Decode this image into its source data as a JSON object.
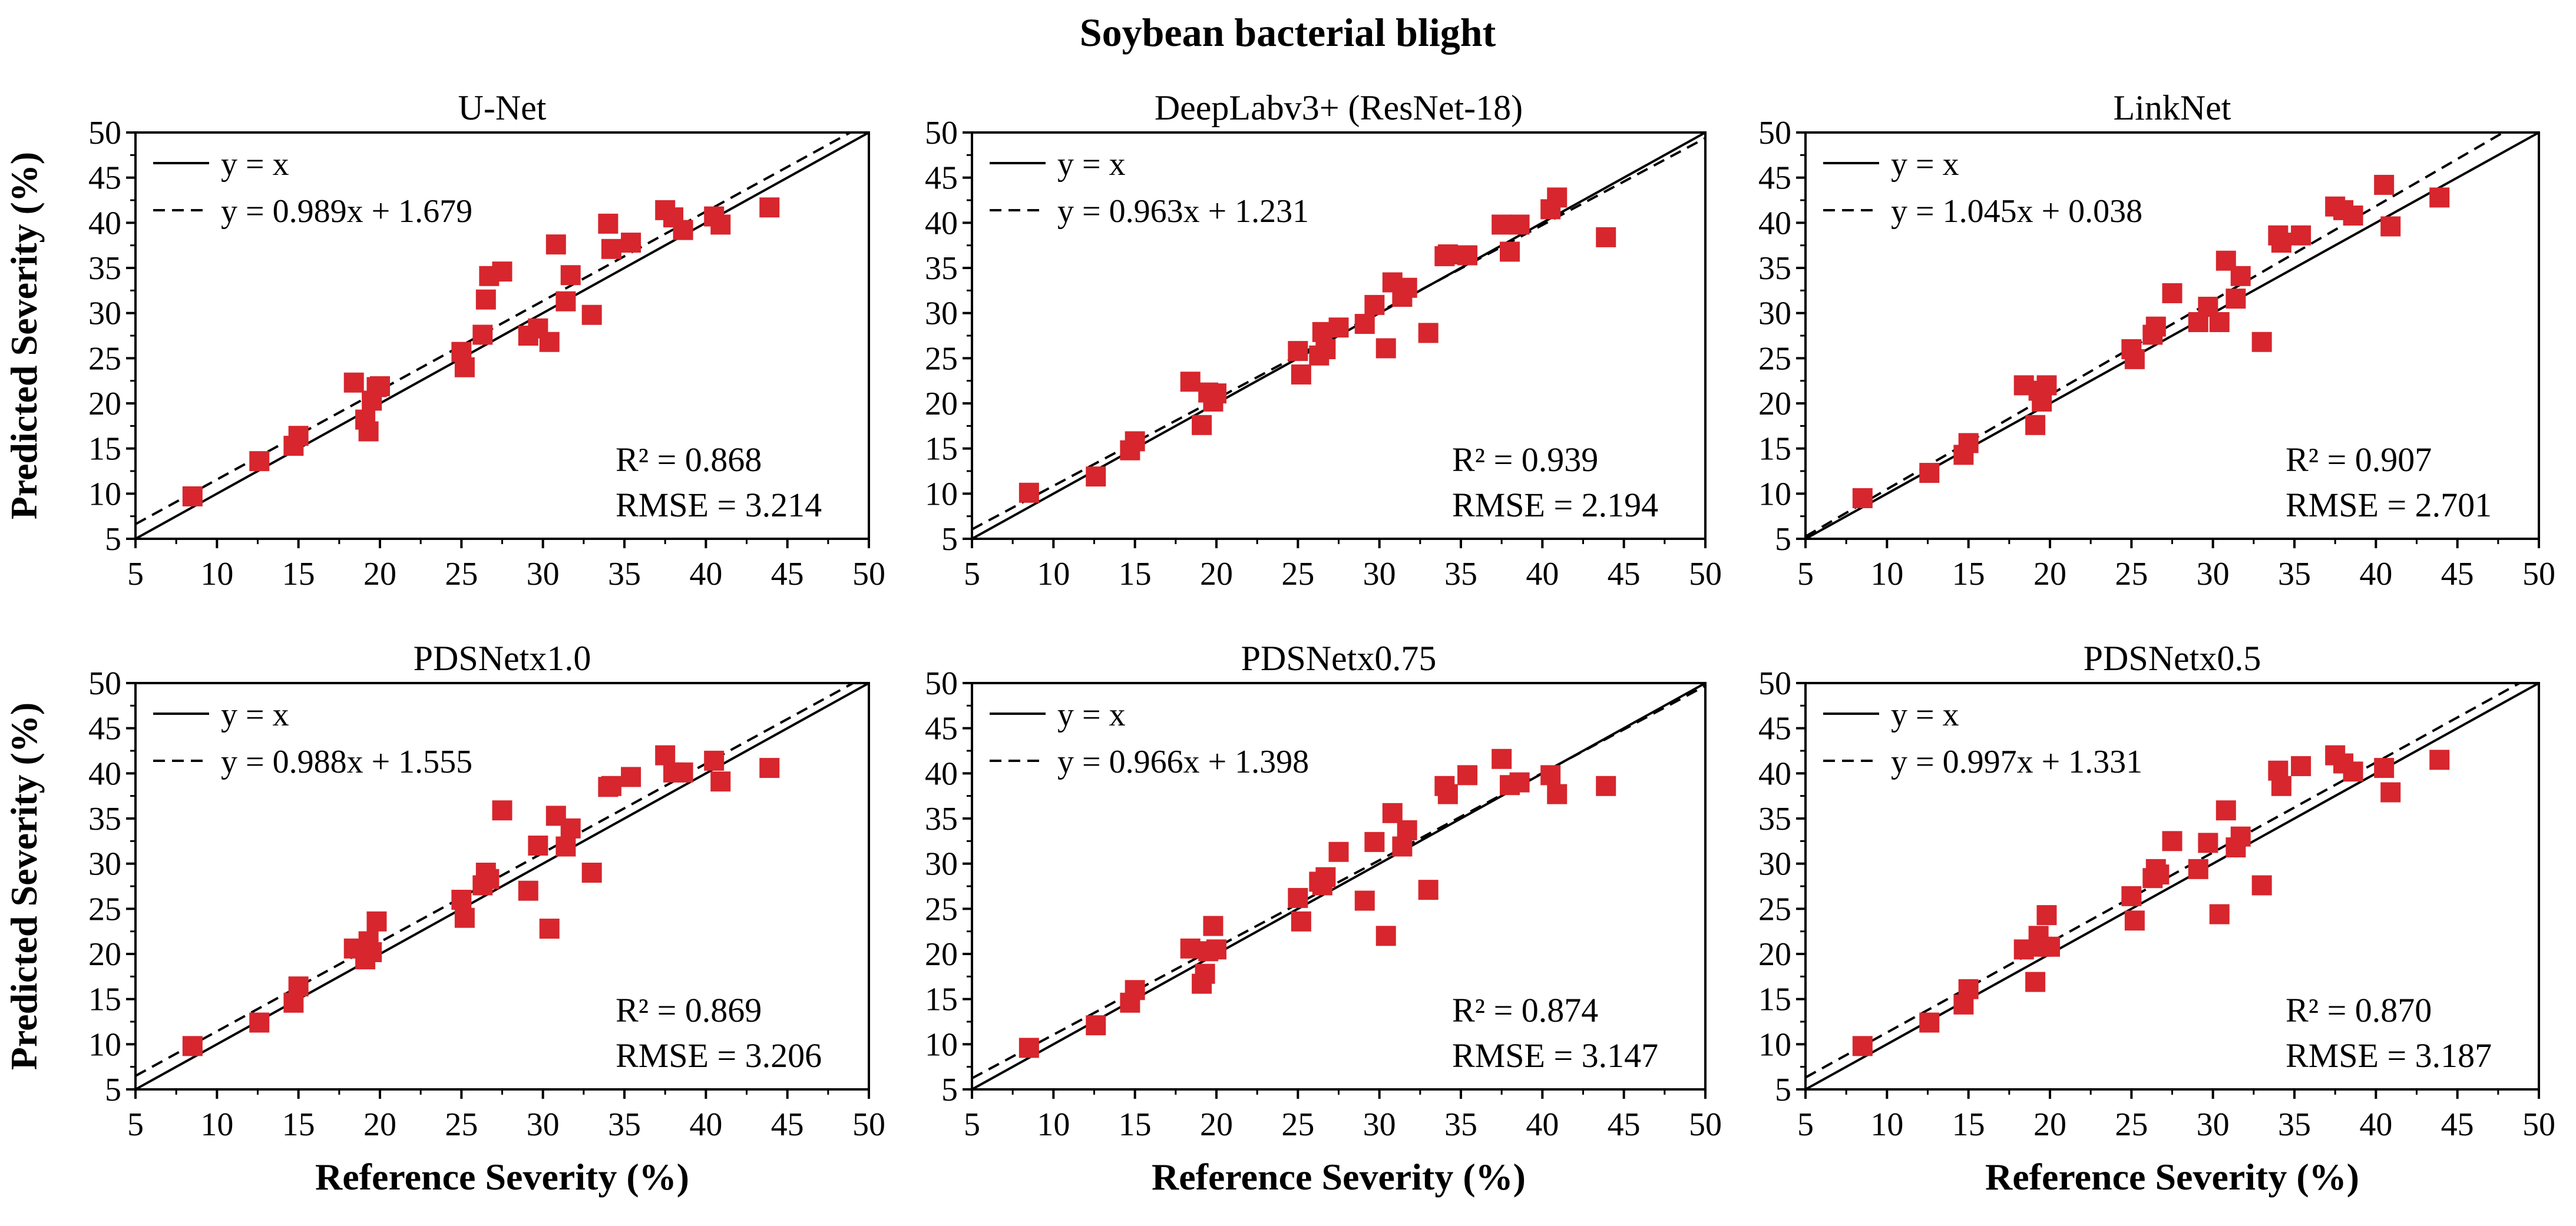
{
  "figure": {
    "title": "Soybean bacterial blight",
    "xlabel": "Reference Severity (%)",
    "ylabel": "Predicted Severity (%)",
    "marker_color": "#d7262d",
    "line_color": "#000000"
  },
  "axis": {
    "xlim": [
      5,
      50
    ],
    "ylim": [
      5,
      50
    ],
    "ticks": [
      "5",
      "10",
      "15",
      "20",
      "25",
      "30",
      "35",
      "40",
      "45",
      "50"
    ]
  },
  "legend": {
    "identity_label": "y = x"
  },
  "chart_data": [
    {
      "type": "scatter",
      "title": "U-Net",
      "fit_label": "y = 0.989x + 1.679",
      "fit": {
        "slope": 0.989,
        "intercept": 1.679
      },
      "r2": "R² = 0.868",
      "rmse": "RMSE = 3.214",
      "points": [
        [
          8.5,
          9.7
        ],
        [
          12.6,
          13.6
        ],
        [
          14.7,
          15.3
        ],
        [
          15.0,
          16.4
        ],
        [
          18.4,
          22.3
        ],
        [
          19.1,
          18.2
        ],
        [
          19.3,
          16.9
        ],
        [
          19.5,
          20.3
        ],
        [
          19.8,
          21.8
        ],
        [
          20.0,
          21.9
        ],
        [
          25.0,
          25.7
        ],
        [
          25.2,
          24.0
        ],
        [
          26.3,
          27.6
        ],
        [
          26.5,
          31.5
        ],
        [
          26.7,
          34.1
        ],
        [
          27.5,
          34.6
        ],
        [
          29.1,
          27.5
        ],
        [
          29.7,
          28.3
        ],
        [
          30.4,
          26.8
        ],
        [
          30.8,
          37.6
        ],
        [
          31.4,
          31.3
        ],
        [
          31.7,
          34.2
        ],
        [
          33.0,
          29.8
        ],
        [
          34.0,
          39.9
        ],
        [
          34.2,
          37.1
        ],
        [
          35.4,
          37.8
        ],
        [
          37.5,
          41.4
        ],
        [
          38.0,
          40.6
        ],
        [
          38.6,
          39.2
        ],
        [
          40.5,
          40.7
        ],
        [
          40.9,
          39.8
        ],
        [
          43.9,
          41.7
        ]
      ]
    },
    {
      "type": "scatter",
      "title": "DeepLabv3+ (ResNet-18)",
      "fit_label": "y = 0.963x + 1.231",
      "fit": {
        "slope": 0.963,
        "intercept": 1.231
      },
      "r2": "R² = 0.939",
      "rmse": "RMSE = 2.194",
      "points": [
        [
          8.5,
          10.1
        ],
        [
          12.6,
          11.9
        ],
        [
          14.7,
          14.8
        ],
        [
          15.0,
          15.8
        ],
        [
          18.4,
          22.4
        ],
        [
          19.1,
          17.6
        ],
        [
          19.5,
          21.2
        ],
        [
          19.8,
          20.2
        ],
        [
          20.0,
          21.1
        ],
        [
          25.0,
          25.8
        ],
        [
          25.2,
          23.2
        ],
        [
          26.3,
          25.3
        ],
        [
          26.5,
          27.9
        ],
        [
          26.7,
          26.0
        ],
        [
          27.5,
          28.4
        ],
        [
          29.1,
          28.8
        ],
        [
          29.7,
          30.9
        ],
        [
          30.4,
          26.1
        ],
        [
          30.8,
          33.4
        ],
        [
          31.4,
          31.8
        ],
        [
          31.7,
          32.8
        ],
        [
          33.0,
          27.8
        ],
        [
          34.0,
          36.3
        ],
        [
          34.2,
          36.5
        ],
        [
          35.4,
          36.4
        ],
        [
          37.5,
          39.8
        ],
        [
          38.0,
          36.8
        ],
        [
          38.6,
          39.8
        ],
        [
          40.5,
          41.5
        ],
        [
          40.9,
          42.8
        ],
        [
          43.9,
          38.4
        ]
      ]
    },
    {
      "type": "scatter",
      "title": "LinkNet",
      "fit_label": "y = 1.045x + 0.038",
      "fit": {
        "slope": 1.045,
        "intercept": 0.038
      },
      "r2": "R² = 0.907",
      "rmse": "RMSE = 2.701",
      "points": [
        [
          8.5,
          9.5
        ],
        [
          12.6,
          12.3
        ],
        [
          14.7,
          14.3
        ],
        [
          15.0,
          15.6
        ],
        [
          18.4,
          22.0
        ],
        [
          19.1,
          17.6
        ],
        [
          19.3,
          21.4
        ],
        [
          19.5,
          20.2
        ],
        [
          19.8,
          22.0
        ],
        [
          25.0,
          26.0
        ],
        [
          25.2,
          24.9
        ],
        [
          26.3,
          27.6
        ],
        [
          26.5,
          28.5
        ],
        [
          27.5,
          32.2
        ],
        [
          29.1,
          29.0
        ],
        [
          29.7,
          30.7
        ],
        [
          30.4,
          29.0
        ],
        [
          30.8,
          35.8
        ],
        [
          31.4,
          31.6
        ],
        [
          31.7,
          34.1
        ],
        [
          33.0,
          26.8
        ],
        [
          34.0,
          38.6
        ],
        [
          34.2,
          37.8
        ],
        [
          35.4,
          38.6
        ],
        [
          37.5,
          41.8
        ],
        [
          38.0,
          41.4
        ],
        [
          38.6,
          40.8
        ],
        [
          40.5,
          44.2
        ],
        [
          40.9,
          39.6
        ],
        [
          43.9,
          42.8
        ]
      ]
    },
    {
      "type": "scatter",
      "title": "PDSNetx1.0",
      "fit_label": "y = 0.988x + 1.555",
      "fit": {
        "slope": 0.988,
        "intercept": 1.555
      },
      "r2": "R² = 0.869",
      "rmse": "RMSE = 3.206",
      "points": [
        [
          8.5,
          9.8
        ],
        [
          12.6,
          12.4
        ],
        [
          14.7,
          14.6
        ],
        [
          15.0,
          16.4
        ],
        [
          18.4,
          20.6
        ],
        [
          19.1,
          19.4
        ],
        [
          19.3,
          21.4
        ],
        [
          19.5,
          20.2
        ],
        [
          19.8,
          23.6
        ],
        [
          25.0,
          26.0
        ],
        [
          25.2,
          24.0
        ],
        [
          26.3,
          27.6
        ],
        [
          26.5,
          29.0
        ],
        [
          26.7,
          28.3
        ],
        [
          27.5,
          35.9
        ],
        [
          29.1,
          27.0
        ],
        [
          29.7,
          32.0
        ],
        [
          30.4,
          22.8
        ],
        [
          30.8,
          35.3
        ],
        [
          31.4,
          31.9
        ],
        [
          31.7,
          33.9
        ],
        [
          33.0,
          29.0
        ],
        [
          34.0,
          38.5
        ],
        [
          34.2,
          38.6
        ],
        [
          35.4,
          39.6
        ],
        [
          37.5,
          42.0
        ],
        [
          38.0,
          40.1
        ],
        [
          38.6,
          40.1
        ],
        [
          40.5,
          41.4
        ],
        [
          40.9,
          39.1
        ],
        [
          43.9,
          40.6
        ]
      ]
    },
    {
      "type": "scatter",
      "title": "PDSNetx0.75",
      "fit_label": "y = 0.966x + 1.398",
      "fit": {
        "slope": 0.966,
        "intercept": 1.398
      },
      "r2": "R² = 0.874",
      "rmse": "RMSE = 3.147",
      "points": [
        [
          8.5,
          9.6
        ],
        [
          12.6,
          12.1
        ],
        [
          14.7,
          14.6
        ],
        [
          15.0,
          16.0
        ],
        [
          18.4,
          20.6
        ],
        [
          19.1,
          16.7
        ],
        [
          19.3,
          17.8
        ],
        [
          19.5,
          20.3
        ],
        [
          19.8,
          23.1
        ],
        [
          20.0,
          20.5
        ],
        [
          25.0,
          26.2
        ],
        [
          25.2,
          23.6
        ],
        [
          26.3,
          28.0
        ],
        [
          26.5,
          27.6
        ],
        [
          26.7,
          28.5
        ],
        [
          27.5,
          31.3
        ],
        [
          29.1,
          25.9
        ],
        [
          29.7,
          32.4
        ],
        [
          30.4,
          22.0
        ],
        [
          30.8,
          35.6
        ],
        [
          31.4,
          31.9
        ],
        [
          31.7,
          33.7
        ],
        [
          33.0,
          27.1
        ],
        [
          34.0,
          38.6
        ],
        [
          34.2,
          37.7
        ],
        [
          35.4,
          39.8
        ],
        [
          37.5,
          41.6
        ],
        [
          38.0,
          38.7
        ],
        [
          38.6,
          39.0
        ],
        [
          40.5,
          39.8
        ],
        [
          40.9,
          37.7
        ],
        [
          43.9,
          38.6
        ]
      ]
    },
    {
      "type": "scatter",
      "title": "PDSNetx0.5",
      "fit_label": "y = 0.997x + 1.331",
      "fit": {
        "slope": 0.997,
        "intercept": 1.331
      },
      "r2": "R² = 0.870",
      "rmse": "RMSE = 3.187",
      "points": [
        [
          8.5,
          9.8
        ],
        [
          12.6,
          12.4
        ],
        [
          14.7,
          14.4
        ],
        [
          15.0,
          16.1
        ],
        [
          18.4,
          20.5
        ],
        [
          19.1,
          16.9
        ],
        [
          19.3,
          22.0
        ],
        [
          19.5,
          20.8
        ],
        [
          19.8,
          24.3
        ],
        [
          20.0,
          20.8
        ],
        [
          25.0,
          26.4
        ],
        [
          25.2,
          23.7
        ],
        [
          26.3,
          28.4
        ],
        [
          26.5,
          29.4
        ],
        [
          26.7,
          28.8
        ],
        [
          27.5,
          32.5
        ],
        [
          29.1,
          29.4
        ],
        [
          29.7,
          32.3
        ],
        [
          30.4,
          24.4
        ],
        [
          30.8,
          35.9
        ],
        [
          31.4,
          31.8
        ],
        [
          31.7,
          33.0
        ],
        [
          33.0,
          27.6
        ],
        [
          34.0,
          40.3
        ],
        [
          34.2,
          38.6
        ],
        [
          35.4,
          40.8
        ],
        [
          37.5,
          42.0
        ],
        [
          38.0,
          41.1
        ],
        [
          38.6,
          40.2
        ],
        [
          40.5,
          40.6
        ],
        [
          40.9,
          37.9
        ],
        [
          43.9,
          41.5
        ]
      ]
    }
  ]
}
